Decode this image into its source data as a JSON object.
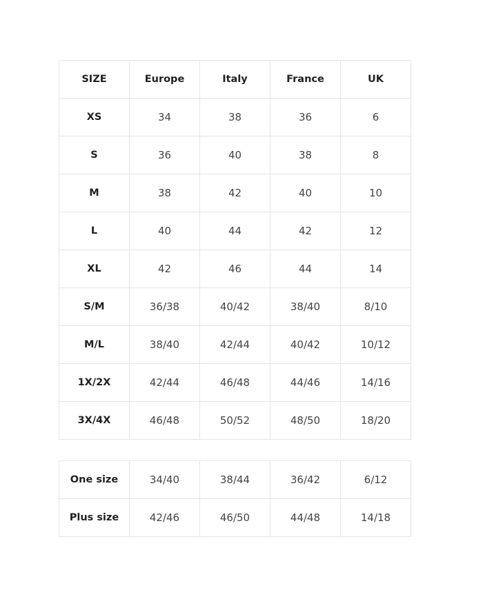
{
  "size_table": {
    "header": [
      "SIZE",
      "Europe",
      "Italy",
      "France",
      "UK"
    ],
    "rows": [
      [
        "XS",
        "34",
        "38",
        "36",
        "6"
      ],
      [
        "S",
        "36",
        "40",
        "38",
        "8"
      ],
      [
        "M",
        "38",
        "42",
        "40",
        "10"
      ],
      [
        "L",
        "40",
        "44",
        "42",
        "12"
      ],
      [
        "XL",
        "42",
        "46",
        "44",
        "14"
      ],
      [
        "S/M",
        "36/38",
        "40/42",
        "38/40",
        "8/10"
      ],
      [
        "M/L",
        "38/40",
        "42/44",
        "40/42",
        "10/12"
      ],
      [
        "1X/2X",
        "42/44",
        "46/48",
        "44/46",
        "14/16"
      ],
      [
        "3X/4X",
        "46/48",
        "50/52",
        "48/50",
        "18/20"
      ]
    ]
  },
  "special_table": {
    "rows": [
      [
        "One size",
        "34/40",
        "38/44",
        "36/42",
        "6/12"
      ],
      [
        "Plus size",
        "42/46",
        "46/50",
        "44/48",
        "14/18"
      ]
    ]
  }
}
